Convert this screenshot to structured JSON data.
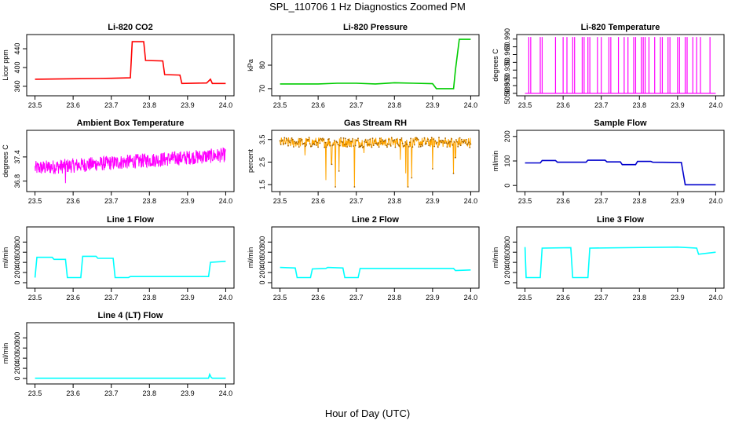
{
  "figure": {
    "title": "SPL_110706  1 Hz Diagnostics Zoomed PM",
    "xlabel": "Hour of Day (UTC)"
  },
  "chart_data": [
    {
      "type": "line",
      "title": "Li-820 CO2",
      "ylabel": "Licor ppm",
      "color": "#ff0000",
      "xlim": [
        23.5,
        24.0
      ],
      "ylim": [
        345,
        465
      ],
      "yticks": [
        360,
        400,
        440
      ],
      "xticks": [
        23.5,
        23.6,
        23.7,
        23.8,
        23.9,
        24.0
      ],
      "series": [
        {
          "x": [
            23.5,
            23.6,
            23.7,
            23.75,
            23.755,
            23.785,
            23.79,
            23.835,
            23.84,
            23.88,
            23.885,
            23.95,
            23.96,
            23.965,
            24.0
          ],
          "y": [
            375,
            376,
            377,
            378,
            455,
            455,
            415,
            414,
            385,
            384,
            366,
            367,
            375,
            366,
            366
          ]
        }
      ]
    },
    {
      "type": "line",
      "title": "Li-820 Pressure",
      "ylabel": "kPa",
      "color": "#00cc00",
      "xlim": [
        23.5,
        24.0
      ],
      "ylim": [
        68,
        92
      ],
      "yticks": [
        70,
        80
      ],
      "xticks": [
        23.5,
        23.6,
        23.7,
        23.8,
        23.9,
        24.0
      ],
      "series": [
        {
          "x": [
            23.5,
            23.6,
            23.65,
            23.7,
            23.75,
            23.8,
            23.85,
            23.9,
            23.91,
            23.955,
            23.96,
            23.97,
            24.0
          ],
          "y": [
            72,
            72,
            72.3,
            72.3,
            72,
            72.5,
            72.3,
            72.1,
            70,
            70,
            78,
            91,
            91
          ]
        }
      ]
    },
    {
      "type": "line",
      "title": "Li-820 Temperature",
      "ylabel": "degrees C",
      "color": "#ff00ff",
      "xlim": [
        23.5,
        24.0
      ],
      "ylim": [
        50.885,
        50.994
      ],
      "yticks": [
        50.885,
        50.9,
        50.915,
        50.93,
        50.945,
        50.96,
        50.975,
        50.99
      ],
      "yticklabels": [
        "50.885",
        "50.900",
        "",
        "50.930",
        "",
        "50.960",
        "",
        "50.990"
      ],
      "xticks": [
        23.5,
        23.6,
        23.7,
        23.8,
        23.9,
        24.0
      ],
      "baseline": 50.885,
      "spike_top": 50.994,
      "spikes": [
        23.51,
        23.515,
        23.54,
        23.545,
        23.58,
        23.6,
        23.61,
        23.625,
        23.63,
        23.65,
        23.655,
        23.665,
        23.67,
        23.69,
        23.7,
        23.72,
        23.725,
        23.745,
        23.76,
        23.77,
        23.785,
        23.79,
        23.805,
        23.81,
        23.815,
        23.825,
        23.84,
        23.855,
        23.86,
        23.875,
        23.88,
        23.9,
        23.905,
        23.92,
        23.925,
        23.94,
        23.95,
        23.96,
        23.985
      ]
    },
    {
      "type": "line",
      "title": "Ambient Box Temperature",
      "ylabel": "degrees C",
      "color": "#ff00ff",
      "xlim": [
        23.5,
        24.0
      ],
      "ylim": [
        36.6,
        38.0
      ],
      "yticks": [
        36.8,
        37.4
      ],
      "yticklabels": [
        "36.8",
        "37.4"
      ],
      "xticks": [
        23.5,
        23.6,
        23.7,
        23.8,
        23.9,
        24.0
      ],
      "noise": {
        "start": 37.12,
        "end": 37.45,
        "amplitude": 0.18,
        "outlier": 36.75
      }
    },
    {
      "type": "line",
      "title": "Gas Stream RH",
      "ylabel": "percent",
      "color": "#ffa500",
      "xlim": [
        23.5,
        24.0
      ],
      "ylim": [
        1.3,
        3.8
      ],
      "yticks": [
        1.5,
        2.5,
        3.5
      ],
      "yticklabels": [
        "1.5",
        "2.5",
        "3.5"
      ],
      "xticks": [
        23.5,
        23.6,
        23.7,
        23.8,
        23.9,
        24.0
      ],
      "band": [
        3.15,
        3.6
      ],
      "dips": [
        [
          23.565,
          2.8
        ],
        [
          23.62,
          1.7
        ],
        [
          23.635,
          2.4
        ],
        [
          23.645,
          1.4
        ],
        [
          23.655,
          2.1
        ],
        [
          23.695,
          1.4
        ],
        [
          23.72,
          2.9
        ],
        [
          23.815,
          2.6
        ],
        [
          23.83,
          2.0
        ],
        [
          23.835,
          1.4
        ],
        [
          23.845,
          1.8
        ],
        [
          23.9,
          2.2
        ],
        [
          23.955,
          2.0
        ],
        [
          23.96,
          2.7
        ]
      ]
    },
    {
      "type": "line",
      "title": "Sample Flow",
      "ylabel": "ml/min",
      "color": "#0000cc",
      "xlim": [
        23.5,
        24.0
      ],
      "ylim": [
        -15,
        215
      ],
      "yticks": [
        0,
        100,
        200
      ],
      "xticks": [
        23.5,
        23.6,
        23.7,
        23.8,
        23.9,
        24.0
      ],
      "series": [
        {
          "x": [
            23.5,
            23.54,
            23.545,
            23.58,
            23.585,
            23.66,
            23.665,
            23.71,
            23.715,
            23.75,
            23.755,
            23.79,
            23.795,
            23.83,
            23.835,
            23.91,
            23.92,
            24.0
          ],
          "y": [
            92,
            92,
            102,
            102,
            95,
            95,
            103,
            103,
            96,
            96,
            85,
            85,
            98,
            98,
            95,
            94,
            3,
            3
          ]
        }
      ]
    },
    {
      "type": "line",
      "title": "Line 1 Flow",
      "ylabel": "ml/min",
      "color": "#00ffff",
      "xlim": [
        23.5,
        24.0
      ],
      "ylim": [
        -60,
        1050
      ],
      "yticks": [
        0,
        200,
        400,
        600,
        800
      ],
      "xticks": [
        23.5,
        23.6,
        23.7,
        23.8,
        23.9,
        24.0
      ],
      "series": [
        {
          "x": [
            23.5,
            23.505,
            23.545,
            23.55,
            23.58,
            23.585,
            23.62,
            23.625,
            23.66,
            23.665,
            23.705,
            23.71,
            23.745,
            23.75,
            23.955,
            23.96,
            24.0
          ],
          "y": [
            100,
            500,
            500,
            460,
            460,
            100,
            100,
            520,
            520,
            480,
            480,
            100,
            100,
            120,
            120,
            400,
            420
          ]
        }
      ]
    },
    {
      "type": "line",
      "title": "Line 2 Flow",
      "ylabel": "ml/min",
      "color": "#00ffff",
      "xlim": [
        23.5,
        24.0
      ],
      "ylim": [
        -60,
        1050
      ],
      "yticks": [
        0,
        200,
        400,
        600,
        800
      ],
      "xticks": [
        23.5,
        23.6,
        23.7,
        23.8,
        23.9,
        24.0
      ],
      "series": [
        {
          "x": [
            23.5,
            23.54,
            23.545,
            23.58,
            23.585,
            23.62,
            23.625,
            23.665,
            23.67,
            23.705,
            23.71,
            23.955,
            23.96,
            24.0
          ],
          "y": [
            300,
            290,
            100,
            100,
            270,
            280,
            300,
            290,
            100,
            100,
            280,
            280,
            240,
            250
          ]
        }
      ]
    },
    {
      "type": "line",
      "title": "Line 3 Flow",
      "ylabel": "ml/min",
      "color": "#00ffff",
      "xlim": [
        23.5,
        24.0
      ],
      "ylim": [
        -60,
        1050
      ],
      "yticks": [
        0,
        200,
        400,
        600,
        800
      ],
      "xticks": [
        23.5,
        23.6,
        23.7,
        23.8,
        23.9,
        24.0
      ],
      "series": [
        {
          "x": [
            23.5,
            23.503,
            23.506,
            23.54,
            23.545,
            23.62,
            23.625,
            23.665,
            23.67,
            23.9,
            23.95,
            23.955,
            24.0
          ],
          "y": [
            700,
            100,
            100,
            100,
            680,
            690,
            100,
            100,
            680,
            700,
            680,
            560,
            600
          ]
        }
      ]
    },
    {
      "type": "line",
      "title": "Line 4 (LT) Flow",
      "ylabel": "ml/min",
      "color": "#00ffff",
      "xlim": [
        23.5,
        24.0
      ],
      "ylim": [
        -60,
        1050
      ],
      "yticks": [
        0,
        200,
        400,
        600,
        800
      ],
      "xticks": [
        23.5,
        23.6,
        23.7,
        23.8,
        23.9,
        24.0
      ],
      "series": [
        {
          "x": [
            23.5,
            23.955,
            23.958,
            23.962,
            23.965,
            24.0
          ],
          "y": [
            5,
            5,
            80,
            20,
            5,
            5
          ]
        }
      ]
    }
  ]
}
